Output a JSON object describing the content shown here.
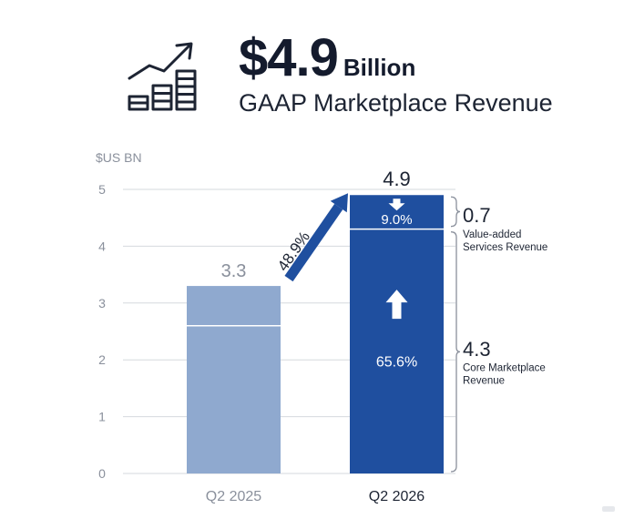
{
  "headline": {
    "value": "$4.9",
    "unit": "Billion",
    "subtitle": "GAAP Marketplace Revenue"
  },
  "icon": "growth-chart-icon",
  "colors": {
    "q2_2025": "#8fa9cf",
    "q2_2026": "#1f4f9f",
    "arrow": "#1f4f9f",
    "text_dark": "#1d2433",
    "text_grey": "#8a909c",
    "grid": "#d6d9de"
  },
  "chart_data": {
    "type": "bar",
    "ylabel": "$US BN",
    "ylim": [
      0,
      5
    ],
    "yticks": [
      0,
      1,
      2,
      3,
      4,
      5
    ],
    "grid": true,
    "categories": [
      "Q2 2025",
      "Q2 2026"
    ],
    "bars": [
      {
        "category": "Q2 2025",
        "total": 3.3,
        "total_label": "3.3",
        "segments": [
          {
            "value": 2.6
          },
          {
            "value": 0.7
          }
        ]
      },
      {
        "category": "Q2 2026",
        "total": 4.9,
        "total_label": "4.9",
        "segments": [
          {
            "value": 4.3,
            "value_label": "4.3",
            "growth_label": "65.6%",
            "name": "Core Marketplace Revenue"
          },
          {
            "value": 0.7,
            "value_label": "0.7",
            "growth_label": "9.0%",
            "name": "Value-added Services Revenue"
          }
        ]
      }
    ],
    "growth_arrow": {
      "from": "Q2 2025",
      "to": "Q2 2026",
      "label": "48.9%"
    }
  }
}
